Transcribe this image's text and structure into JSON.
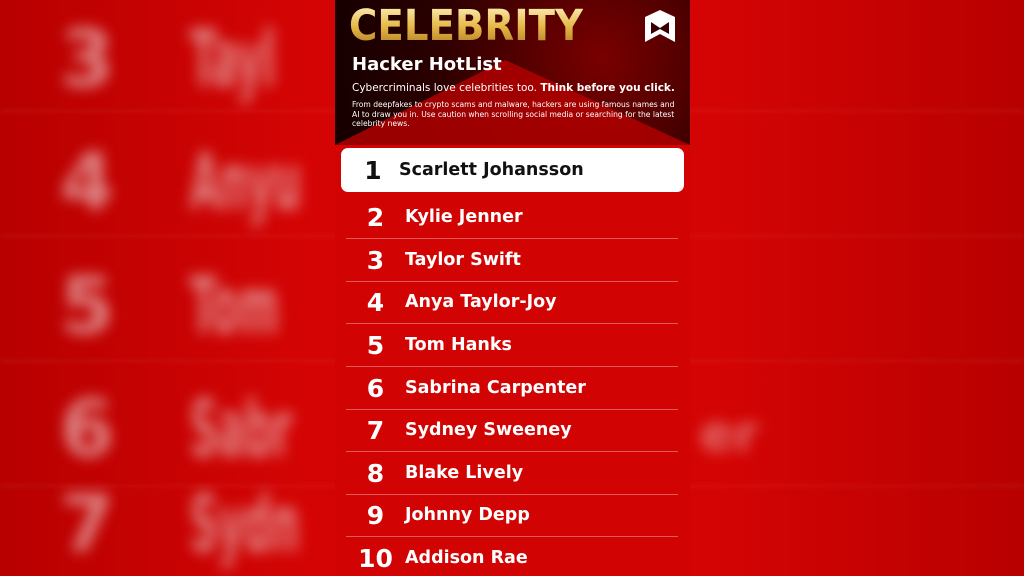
{
  "background_blur": [
    {
      "rank": "3",
      "name": "Tayl"
    },
    {
      "rank": "4",
      "name": "Anyu"
    },
    {
      "rank": "5",
      "name": "Tom"
    },
    {
      "rank": "6",
      "name": "Sabr"
    },
    {
      "rank": "7",
      "name": "Sydn"
    }
  ],
  "background_blur_right": "er",
  "header": {
    "title": "CELEBRITY",
    "subtitle": "Hacker HotList",
    "tagline": "Cybercriminals love celebrities too.",
    "tagline_bold": "Think before you click.",
    "description": "From deepfakes to crypto scams and malware, hackers are using famous names and AI to draw you in. Use caution when scrolling social media or searching for the latest celebrity news.",
    "logo": "mcafee-shield-icon"
  },
  "list": [
    {
      "rank": "1",
      "name": "Scarlett Johansson"
    },
    {
      "rank": "2",
      "name": "Kylie Jenner"
    },
    {
      "rank": "3",
      "name": "Taylor Swift"
    },
    {
      "rank": "4",
      "name": "Anya Taylor-Joy"
    },
    {
      "rank": "5",
      "name": "Tom Hanks"
    },
    {
      "rank": "6",
      "name": "Sabrina Carpenter"
    },
    {
      "rank": "7",
      "name": "Sydney Sweeney"
    },
    {
      "rank": "8",
      "name": "Blake Lively"
    },
    {
      "rank": "9",
      "name": "Johnny Depp"
    },
    {
      "rank": "10",
      "name": "Addison Rae"
    }
  ],
  "colors": {
    "red": "#d10303",
    "gold": "#e7b949",
    "highlight": "#ffffff"
  }
}
